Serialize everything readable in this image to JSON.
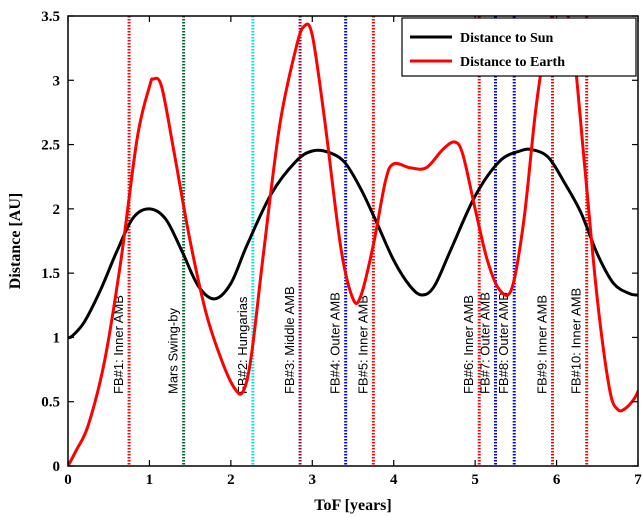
{
  "chart_data": {
    "type": "line",
    "xlabel": "ToF [years]",
    "ylabel": "Distance [AU]",
    "xlim": [
      0,
      7
    ],
    "ylim": [
      0,
      3.5
    ],
    "xticks": [
      0,
      1,
      2,
      3,
      4,
      5,
      6,
      7
    ],
    "yticks": [
      0,
      0.5,
      1,
      1.5,
      2,
      2.5,
      3,
      3.5
    ],
    "ytick_labels": [
      "0",
      "0.5",
      "1",
      "1.5",
      "2",
      "2.5",
      "3",
      "3.5"
    ],
    "grid": false,
    "legend_position": "top-right",
    "series": [
      {
        "name": "Distance to Sun",
        "color": "#000000",
        "points": [
          [
            0,
            1.0
          ],
          [
            0.05,
            1.01
          ],
          [
            0.2,
            1.12
          ],
          [
            0.4,
            1.37
          ],
          [
            0.6,
            1.67
          ],
          [
            0.8,
            1.93
          ],
          [
            1.0,
            2.0
          ],
          [
            1.2,
            1.92
          ],
          [
            1.4,
            1.67
          ],
          [
            1.6,
            1.4
          ],
          [
            1.8,
            1.3
          ],
          [
            2.0,
            1.42
          ],
          [
            2.2,
            1.72
          ],
          [
            2.5,
            2.12
          ],
          [
            2.8,
            2.37
          ],
          [
            3.0,
            2.45
          ],
          [
            3.2,
            2.44
          ],
          [
            3.4,
            2.36
          ],
          [
            3.6,
            2.15
          ],
          [
            3.8,
            1.88
          ],
          [
            4.0,
            1.6
          ],
          [
            4.2,
            1.4
          ],
          [
            4.35,
            1.33
          ],
          [
            4.5,
            1.4
          ],
          [
            4.7,
            1.68
          ],
          [
            5.0,
            2.1
          ],
          [
            5.3,
            2.37
          ],
          [
            5.55,
            2.45
          ],
          [
            5.7,
            2.46
          ],
          [
            5.9,
            2.4
          ],
          [
            6.1,
            2.2
          ],
          [
            6.3,
            1.97
          ],
          [
            6.5,
            1.65
          ],
          [
            6.7,
            1.42
          ],
          [
            6.9,
            1.34
          ],
          [
            7.0,
            1.33
          ]
        ]
      },
      {
        "name": "Distance to Earth",
        "color": "#ff0000",
        "points": [
          [
            0,
            0.0
          ],
          [
            0.1,
            0.12
          ],
          [
            0.25,
            0.32
          ],
          [
            0.45,
            0.82
          ],
          [
            0.65,
            1.6
          ],
          [
            0.85,
            2.55
          ],
          [
            1.0,
            2.95
          ],
          [
            1.05,
            3.01
          ],
          [
            1.15,
            2.95
          ],
          [
            1.3,
            2.45
          ],
          [
            1.5,
            1.75
          ],
          [
            1.7,
            1.18
          ],
          [
            1.9,
            0.8
          ],
          [
            2.05,
            0.6
          ],
          [
            2.15,
            0.58
          ],
          [
            2.25,
            0.85
          ],
          [
            2.4,
            1.65
          ],
          [
            2.6,
            2.65
          ],
          [
            2.8,
            3.25
          ],
          [
            2.9,
            3.42
          ],
          [
            3.0,
            3.35
          ],
          [
            3.15,
            2.7
          ],
          [
            3.35,
            1.7
          ],
          [
            3.5,
            1.3
          ],
          [
            3.6,
            1.33
          ],
          [
            3.75,
            1.72
          ],
          [
            3.9,
            2.22
          ],
          [
            4.0,
            2.35
          ],
          [
            4.2,
            2.32
          ],
          [
            4.4,
            2.32
          ],
          [
            4.6,
            2.46
          ],
          [
            4.75,
            2.52
          ],
          [
            4.85,
            2.42
          ],
          [
            5.0,
            2.0
          ],
          [
            5.15,
            1.6
          ],
          [
            5.3,
            1.37
          ],
          [
            5.45,
            1.38
          ],
          [
            5.6,
            1.92
          ],
          [
            5.75,
            2.8
          ],
          [
            5.9,
            3.4
          ],
          [
            6.0,
            3.55
          ],
          [
            6.1,
            3.55
          ],
          [
            6.2,
            3.3
          ],
          [
            6.35,
            2.3
          ],
          [
            6.5,
            1.3
          ],
          [
            6.65,
            0.6
          ],
          [
            6.75,
            0.44
          ],
          [
            6.85,
            0.45
          ],
          [
            6.95,
            0.52
          ],
          [
            7.0,
            0.58
          ]
        ]
      }
    ],
    "events": [
      {
        "label": "FB#1: Inner AMB",
        "x": 0.75,
        "color": "#ff0000"
      },
      {
        "label": "Mars Swing-by",
        "x": 1.42,
        "color": "#006633"
      },
      {
        "label": "FB#2: Hungarias",
        "x": 2.27,
        "color": "#00e5e5"
      },
      {
        "label": "FB#3: Middle AMB",
        "x": 2.85,
        "color": "#990033"
      },
      {
        "label": "FB#4: Outer AMB",
        "x": 3.41,
        "color": "#0000ee"
      },
      {
        "label": "FB#5: Inner AMB",
        "x": 3.75,
        "color": "#ff0000"
      },
      {
        "label": "FB#6: Inner AMB",
        "x": 5.05,
        "color": "#ff0000"
      },
      {
        "label": "FB#7: Outer AMB",
        "x": 5.25,
        "color": "#0000ee"
      },
      {
        "label": "FB#8: Outer AMB",
        "x": 5.48,
        "color": "#0000ee"
      },
      {
        "label": "FB#9: Inner AMB",
        "x": 5.95,
        "color": "#ff0000"
      },
      {
        "label": "FB#10: Inner AMB",
        "x": 6.37,
        "color": "#ff0000"
      }
    ]
  }
}
